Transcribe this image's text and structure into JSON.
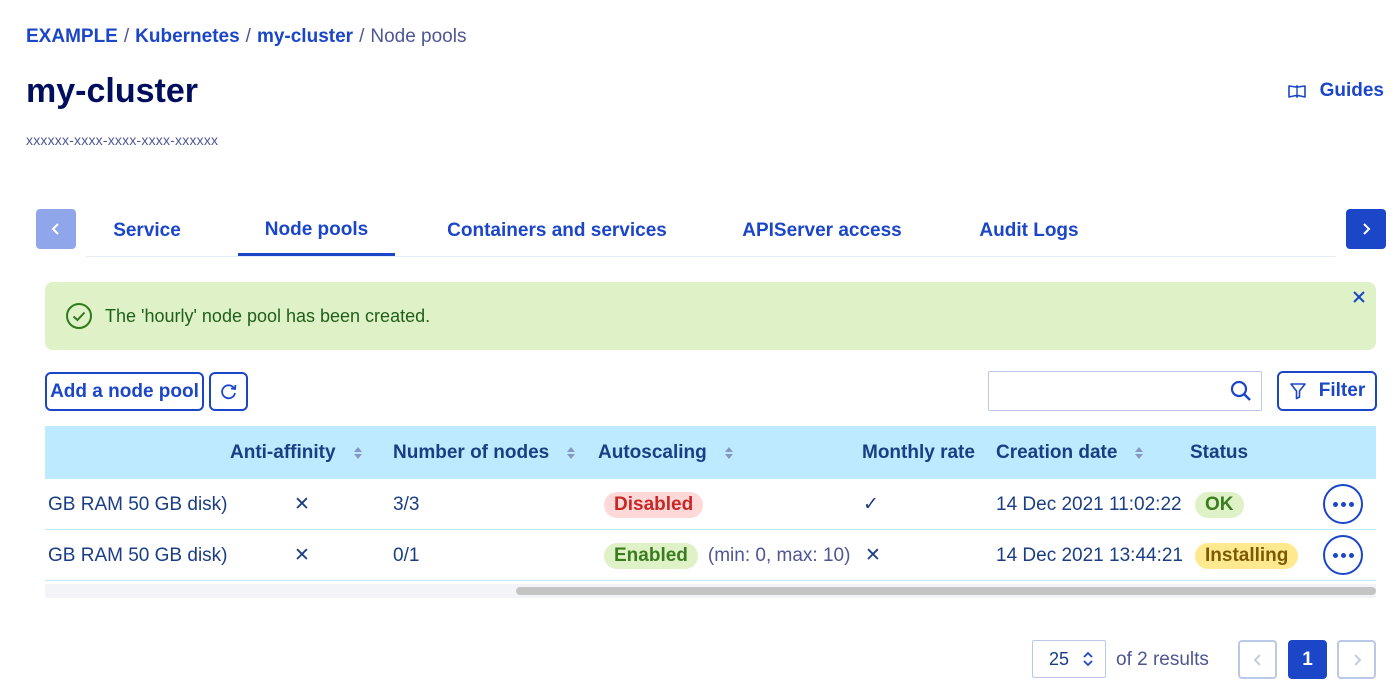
{
  "breadcrumb": {
    "items": [
      "EXAMPLE",
      "Kubernetes",
      "my-cluster"
    ],
    "current": "Node pools",
    "separator": "/"
  },
  "header": {
    "title": "my-cluster",
    "cluster_id": "xxxxxx-xxxx-xxxx-xxxx-xxxxxx",
    "guides_label": "Guides"
  },
  "tabs": [
    {
      "label": "Service",
      "active": false
    },
    {
      "label": "Node pools",
      "active": true
    },
    {
      "label": "Containers and services",
      "active": false
    },
    {
      "label": "APIServer access",
      "active": false
    },
    {
      "label": "Audit Logs",
      "active": false
    }
  ],
  "alert": {
    "message": "The 'hourly' node pool has been created."
  },
  "toolbar": {
    "add_label": "Add a node pool",
    "search_placeholder": "",
    "filter_label": "Filter"
  },
  "table": {
    "columns": [
      {
        "label": "Anti-affinity",
        "sortable": true
      },
      {
        "label": "Number of nodes",
        "sortable": true
      },
      {
        "label": "Autoscaling",
        "sortable": true
      },
      {
        "label": "Monthly rate",
        "sortable": false
      },
      {
        "label": "Creation date",
        "sortable": true
      },
      {
        "label": "Status",
        "sortable": false
      }
    ],
    "rows": [
      {
        "flavor": "GB RAM 50 GB disk)",
        "anti_affinity": "✕",
        "nodes": "3/3",
        "autoscaling": "Disabled",
        "autoscaling_extra": "",
        "monthly_rate": "✓",
        "created": "14 Dec 2021 11:02:22",
        "status": "OK"
      },
      {
        "flavor": "GB RAM 50 GB disk)",
        "anti_affinity": "✕",
        "nodes": "0/1",
        "autoscaling": "Enabled",
        "autoscaling_extra": "(min: 0, max: 10)",
        "monthly_rate": "✕",
        "created": "14 Dec 2021 13:44:21",
        "status": "Installing"
      }
    ]
  },
  "pagination": {
    "page_size": "25",
    "results_text": "of 2 results",
    "current_page": "1"
  },
  "colors": {
    "primary": "#1b46c8",
    "title": "#000e5c",
    "success_bg": "#dff1c7",
    "header_bg": "#bdeaff",
    "danger": "#c82727",
    "warning_bg": "#ffe98f"
  }
}
